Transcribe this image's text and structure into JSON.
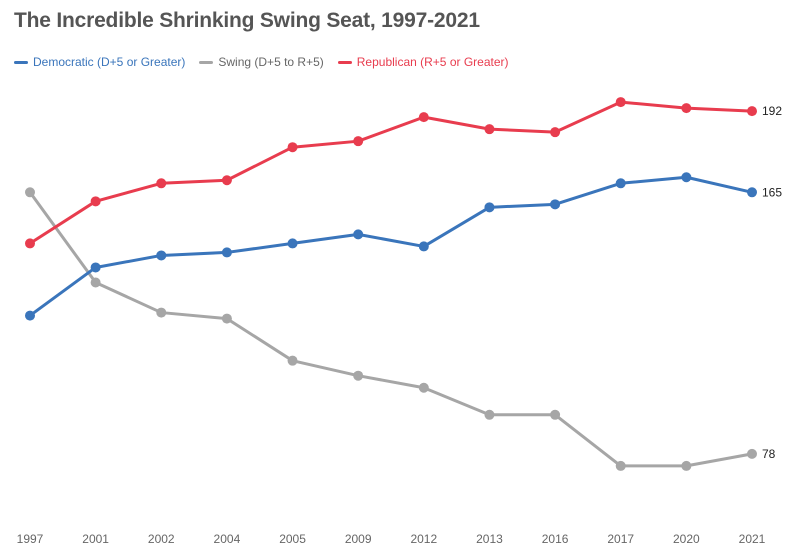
{
  "chart_data": {
    "type": "line",
    "title": "The Incredible Shrinking Swing Seat, 1997-2021",
    "categories": [
      "1997",
      "2001",
      "2002",
      "2004",
      "2005",
      "2009",
      "2012",
      "2013",
      "2016",
      "2017",
      "2020",
      "2021"
    ],
    "series": [
      {
        "name": "Democratic (D+5 or Greater)",
        "color": "#3a75bb",
        "values": [
          124,
          140,
          144,
          145,
          148,
          151,
          147,
          160,
          161,
          168,
          170,
          165
        ]
      },
      {
        "name": "Swing (D+5 to R+5)",
        "color": "#a6a6a6",
        "values": [
          165,
          135,
          125,
          123,
          109,
          104,
          100,
          91,
          91,
          74,
          74,
          78
        ]
      },
      {
        "name": "Republican (R+5 or Greater)",
        "color": "#e83c4e",
        "values": [
          148,
          162,
          168,
          169,
          180,
          182,
          190,
          186,
          185,
          195,
          193,
          192
        ]
      }
    ],
    "end_labels": [
      {
        "series": "Republican (R+5 or Greater)",
        "text": "192"
      },
      {
        "series": "Democratic (D+5 or Greater)",
        "text": "165"
      },
      {
        "series": "Swing (D+5 to R+5)",
        "text": "78"
      }
    ],
    "ylim": [
      61,
      209
    ],
    "grid": false,
    "legend_position": "top-left",
    "xlabel": "",
    "ylabel": ""
  }
}
